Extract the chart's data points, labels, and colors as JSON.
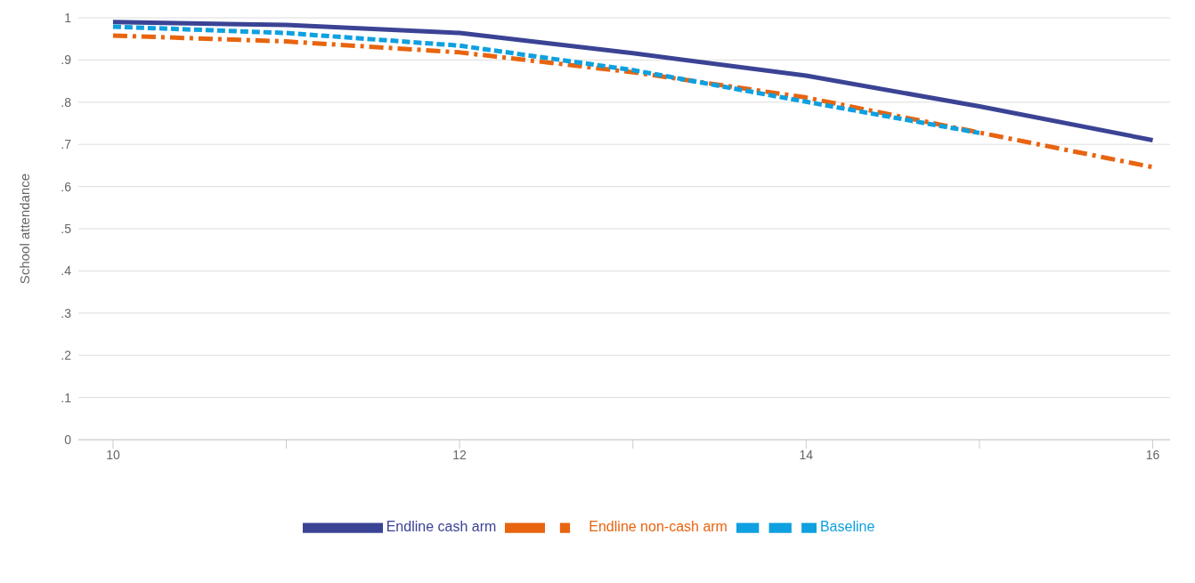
{
  "chart_data": {
    "type": "line",
    "ylabel": "School attendance",
    "x": [
      10,
      11,
      12,
      13,
      14,
      15,
      16
    ],
    "xlim": [
      9.8,
      16.1
    ],
    "xticks": [
      10,
      {
        "value": 11,
        "label": null
      },
      12,
      {
        "value": 13,
        "label": null
      },
      14,
      {
        "value": 15,
        "label": null
      },
      16
    ],
    "ylim": [
      0,
      1
    ],
    "yticks": [
      0,
      {
        "value": 0.1,
        "label": ".1"
      },
      {
        "value": 0.2,
        "label": ".2"
      },
      {
        "value": 0.3,
        "label": ".3"
      },
      {
        "value": 0.4,
        "label": ".4"
      },
      {
        "value": 0.5,
        "label": ".5"
      },
      {
        "value": 0.6,
        "label": ".6"
      },
      {
        "value": 0.7,
        "label": ".7"
      },
      {
        "value": 0.8,
        "label": ".8"
      },
      {
        "value": 0.9,
        "label": ".9"
      },
      1
    ],
    "grid": "y",
    "legend": "bottom",
    "marker": "none",
    "series": [
      {
        "name": "Endline cash arm",
        "color": "#3b4395",
        "line_style": "solid",
        "values": [
          0.99,
          0.983,
          0.964,
          0.916,
          0.863,
          0.79,
          0.71
        ]
      },
      {
        "name": "Endline non-cash arm",
        "color": "#e8640f",
        "line_style": "dashdot",
        "values": [
          0.958,
          0.944,
          0.918,
          0.871,
          0.811,
          0.728,
          0.646
        ]
      },
      {
        "name": "Baseline",
        "color": "#0ea0e0",
        "line_style": "dashed",
        "values": [
          0.979,
          0.964,
          0.934,
          0.876,
          0.801,
          0.727,
          null
        ]
      }
    ]
  }
}
